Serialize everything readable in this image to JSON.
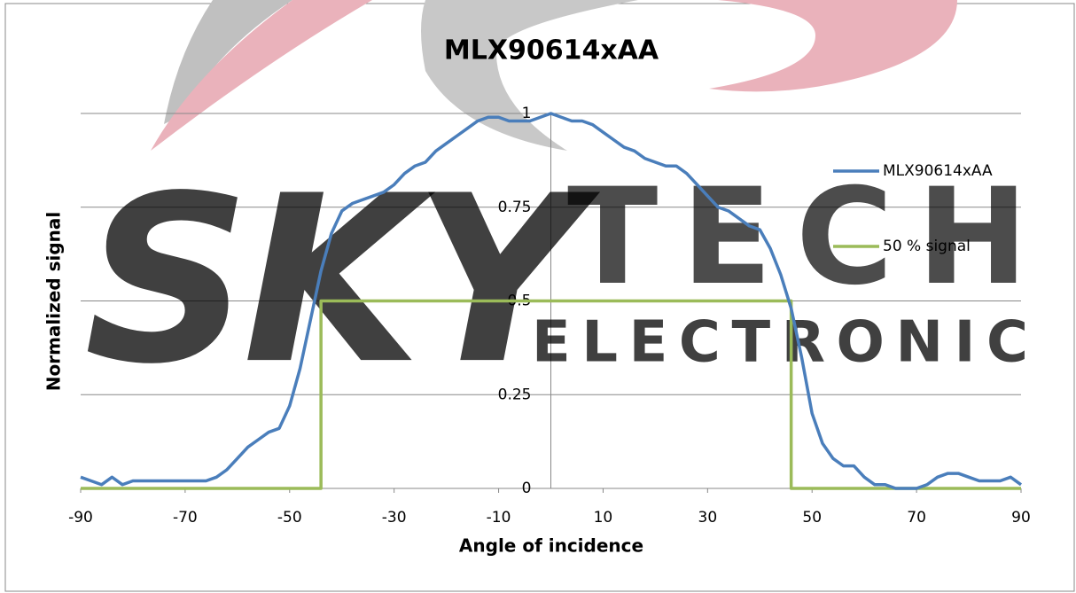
{
  "chart_data": {
    "type": "line",
    "title": "MLX90614xAA",
    "xlabel": "Angle of incidence",
    "ylabel": "Normalized signal",
    "watermark": [
      "SKY",
      "TECH",
      "ELECTRONIC"
    ],
    "xlim": [
      -90,
      90
    ],
    "xticks": [
      -90,
      -70,
      -50,
      -30,
      -10,
      10,
      30,
      50,
      70,
      90
    ],
    "ylim": [
      0,
      1
    ],
    "yticks": [
      0,
      0.25,
      0.5,
      0.75,
      1
    ],
    "grid": true,
    "legend": "right",
    "series": [
      {
        "name": "MLX90614xAA",
        "color": "#4a7ebb",
        "x": [
          -90,
          -88,
          -86,
          -84,
          -82,
          -80,
          -78,
          -76,
          -74,
          -72,
          -70,
          -68,
          -66,
          -64,
          -62,
          -60,
          -58,
          -56,
          -54,
          -52,
          -50,
          -48,
          -46,
          -44,
          -42,
          -40,
          -38,
          -36,
          -34,
          -32,
          -30,
          -28,
          -26,
          -24,
          -22,
          -20,
          -18,
          -16,
          -14,
          -12,
          -10,
          -8,
          -6,
          -4,
          -2,
          0,
          2,
          4,
          6,
          8,
          10,
          12,
          14,
          16,
          18,
          20,
          22,
          24,
          26,
          28,
          30,
          32,
          34,
          36,
          38,
          40,
          42,
          44,
          46,
          48,
          50,
          52,
          54,
          56,
          58,
          60,
          62,
          64,
          66,
          68,
          70,
          72,
          74,
          76,
          78,
          80,
          82,
          84,
          86,
          88,
          90
        ],
        "values": [
          0.03,
          0.02,
          0.01,
          0.03,
          0.01,
          0.02,
          0.02,
          0.02,
          0.02,
          0.02,
          0.02,
          0.02,
          0.02,
          0.03,
          0.05,
          0.08,
          0.11,
          0.13,
          0.15,
          0.16,
          0.22,
          0.32,
          0.45,
          0.58,
          0.68,
          0.74,
          0.76,
          0.77,
          0.78,
          0.79,
          0.81,
          0.84,
          0.86,
          0.87,
          0.9,
          0.92,
          0.94,
          0.96,
          0.98,
          0.99,
          0.99,
          0.98,
          0.98,
          0.98,
          0.99,
          1,
          0.99,
          0.98,
          0.98,
          0.97,
          0.95,
          0.93,
          0.91,
          0.9,
          0.88,
          0.87,
          0.86,
          0.86,
          0.84,
          0.81,
          0.78,
          0.75,
          0.74,
          0.72,
          0.7,
          0.69,
          0.64,
          0.57,
          0.48,
          0.35,
          0.2,
          0.12,
          0.08,
          0.06,
          0.06,
          0.03,
          0.01,
          0.01,
          0,
          0,
          0,
          0.01,
          0.03,
          0.04,
          0.04,
          0.03,
          0.02,
          0.02,
          0.02,
          0.03,
          0.01
        ]
      },
      {
        "name": "50 % signal",
        "color": "#9bbb59",
        "x": [
          -90,
          -44,
          -44,
          46,
          46,
          90
        ],
        "values": [
          0,
          0,
          0.5,
          0.5,
          0,
          0
        ]
      }
    ]
  }
}
